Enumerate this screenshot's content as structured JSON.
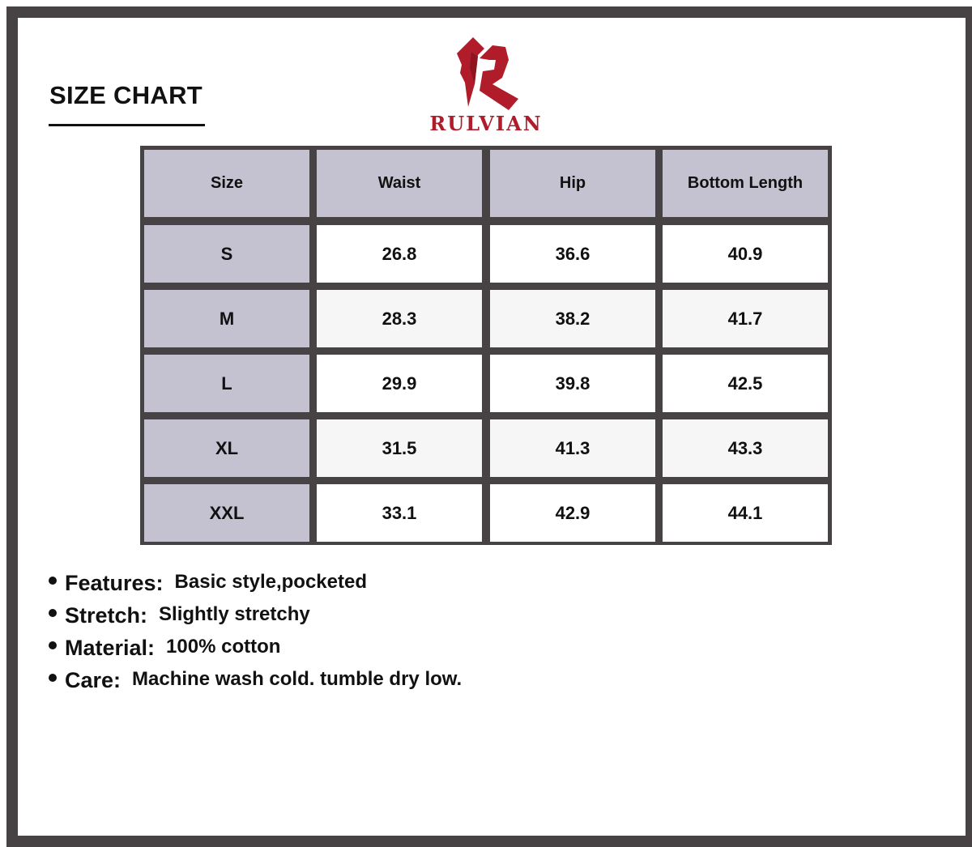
{
  "title": "SIZE CHART",
  "brand": {
    "name": "RULVIAN",
    "color": "#b01c2a"
  },
  "table": {
    "headers": [
      "Size",
      "Waist",
      "Hip",
      "Bottom Length"
    ],
    "rows": [
      [
        "S",
        "26.8",
        "36.6",
        "40.9"
      ],
      [
        "M",
        "28.3",
        "38.2",
        "41.7"
      ],
      [
        "L",
        "29.9",
        "39.8",
        "42.5"
      ],
      [
        "XL",
        "31.5",
        "41.3",
        "43.3"
      ],
      [
        "XXL",
        "33.1",
        "42.9",
        "44.1"
      ]
    ]
  },
  "notes": [
    {
      "label": "Features:",
      "value": "Basic style,pocketed"
    },
    {
      "label": "Stretch:",
      "value": "Slightly stretchy"
    },
    {
      "label": "Material:",
      "value": "100% cotton"
    },
    {
      "label": "Care:",
      "value": "Machine wash cold. tumble dry low."
    }
  ]
}
